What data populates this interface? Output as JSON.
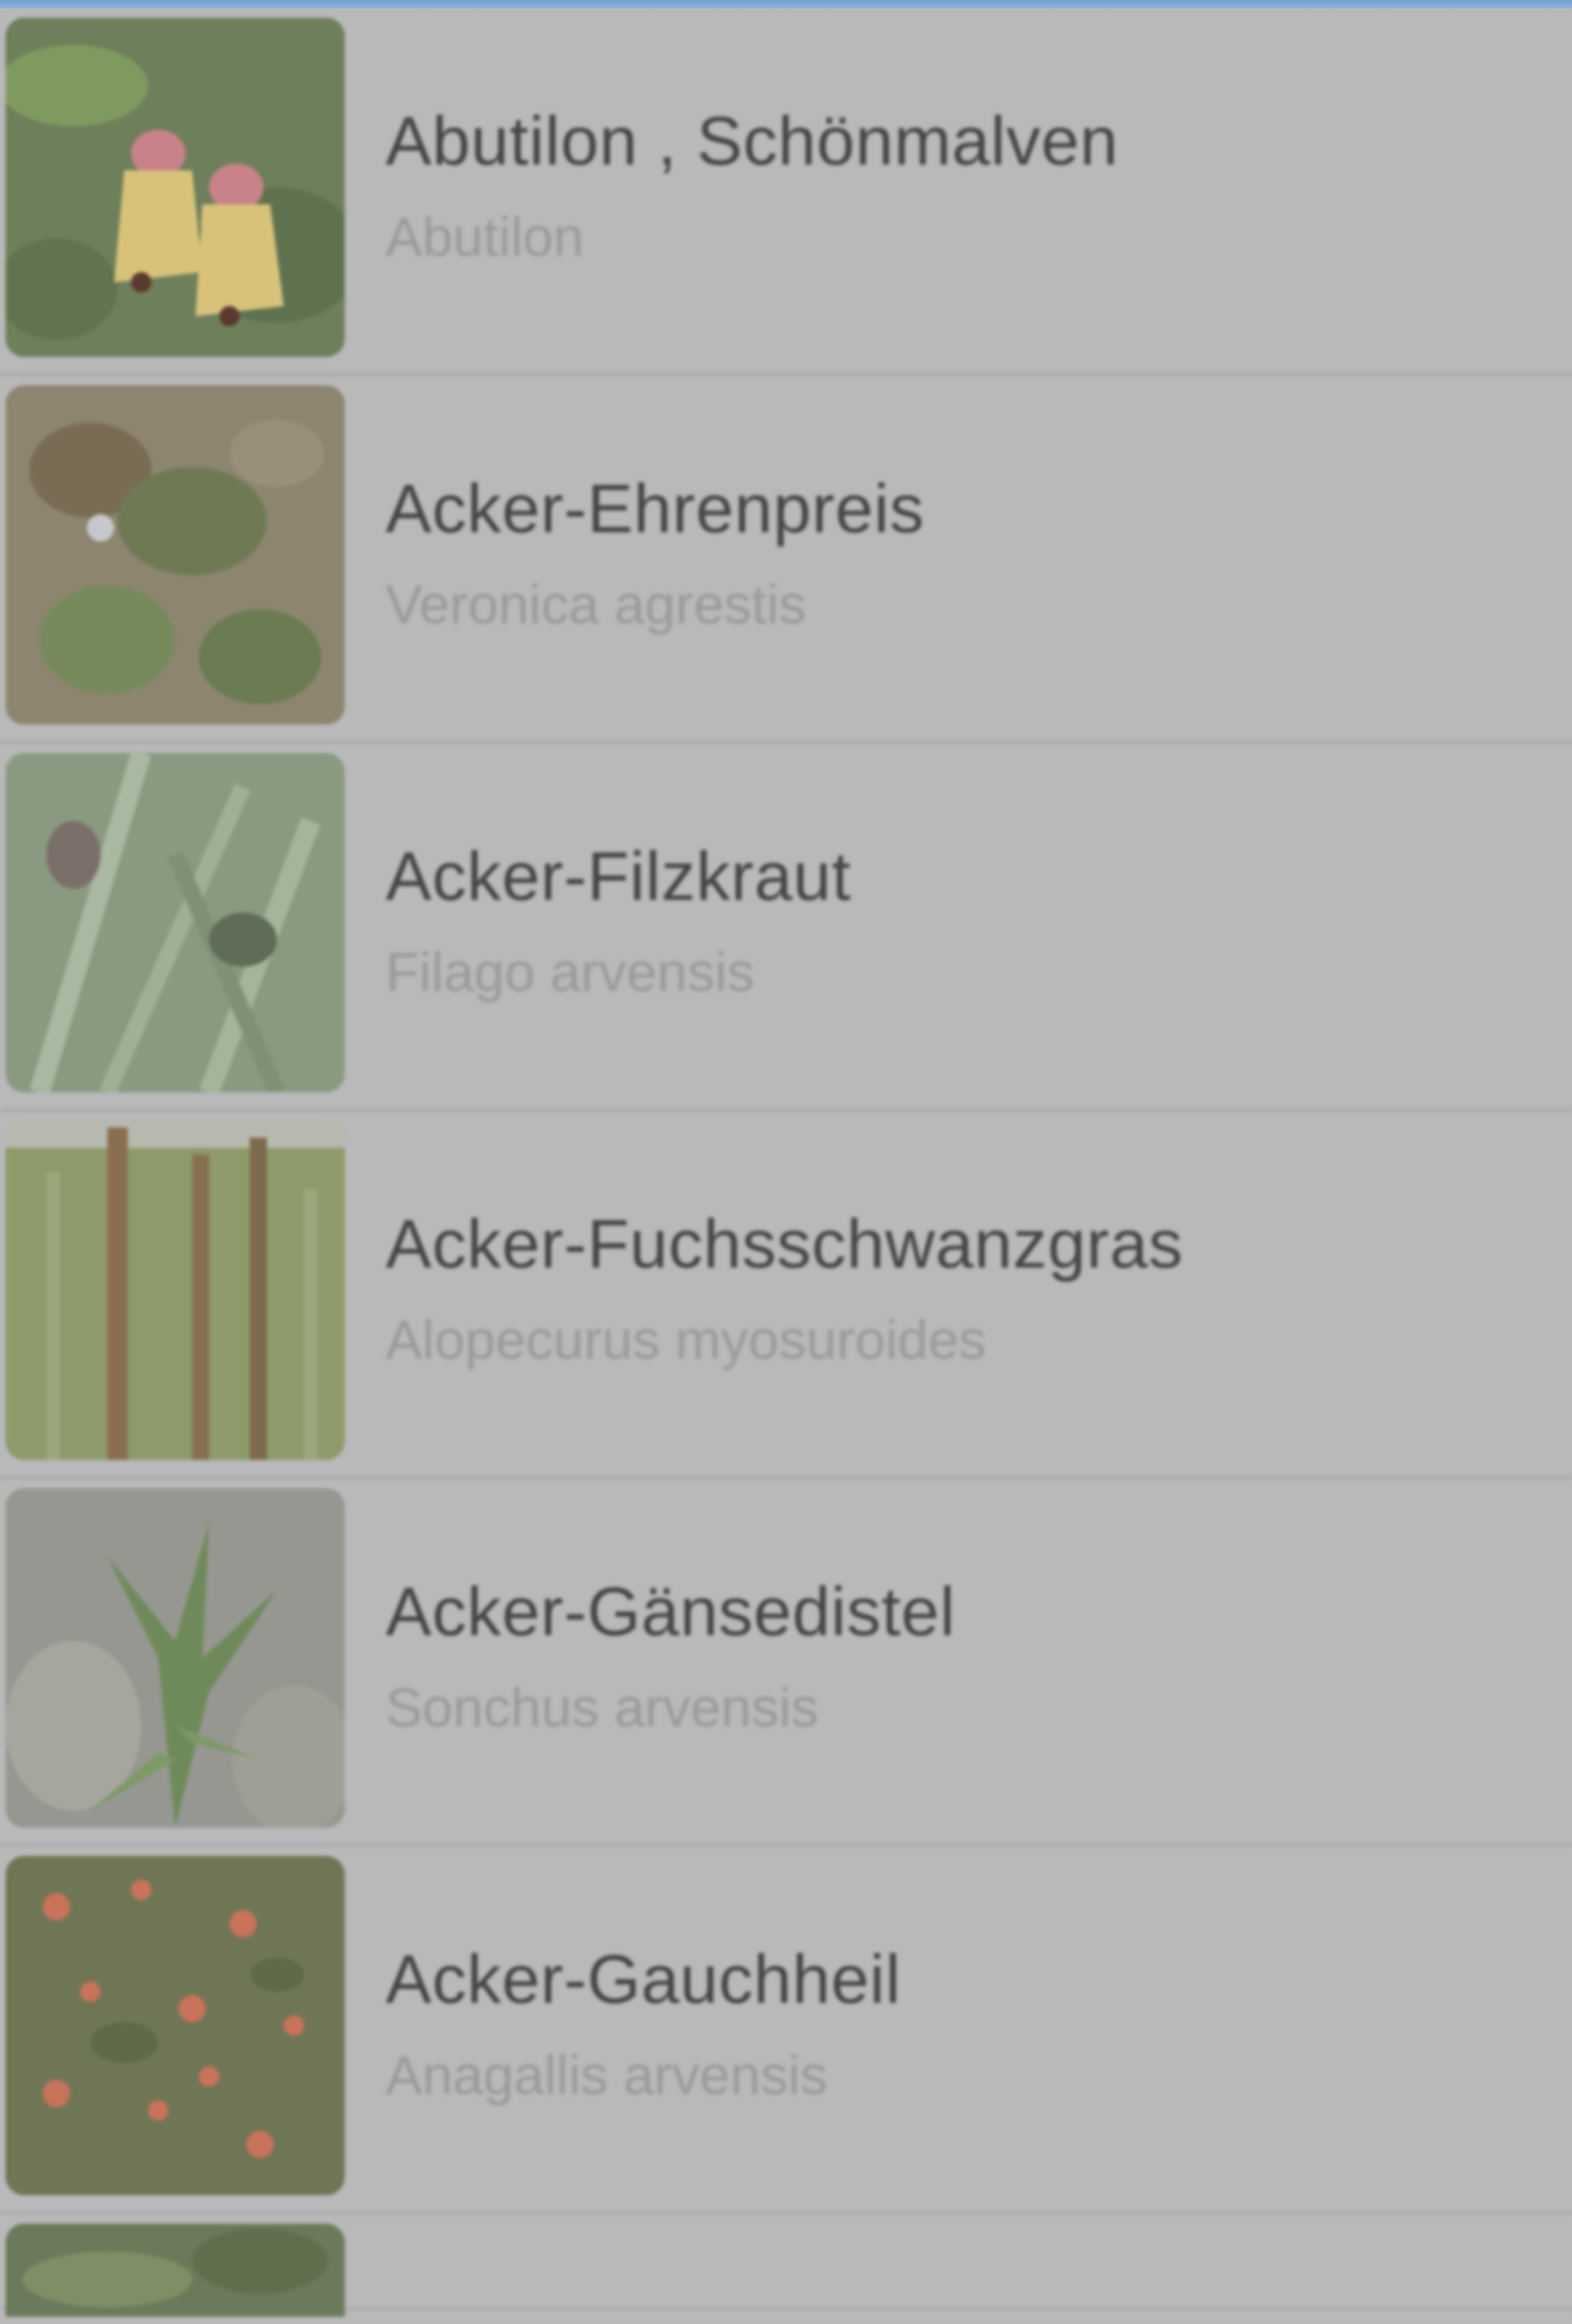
{
  "plants": [
    {
      "common": "Abutilon , Schönmalven",
      "latin": "Abutilon",
      "thumb_icon": "abutilon-flower-photo"
    },
    {
      "common": "Acker-Ehrenpreis",
      "latin": "Veronica agrestis",
      "thumb_icon": "veronica-agrestis-photo"
    },
    {
      "common": "Acker-Filzkraut",
      "latin": "Filago arvensis",
      "thumb_icon": "filago-arvensis-photo"
    },
    {
      "common": "Acker-Fuchsschwanzgras",
      "latin": "Alopecurus myosuroides",
      "thumb_icon": "alopecurus-myosuroides-photo"
    },
    {
      "common": "Acker-Gänsedistel",
      "latin": "Sonchus arvensis",
      "thumb_icon": "sonchus-arvensis-photo"
    },
    {
      "common": "Acker-Gauchheil",
      "latin": "Anagallis arvensis",
      "thumb_icon": "anagallis-arvensis-photo"
    }
  ],
  "colors": {
    "overlay": "#b9b9b9",
    "title_text": "#454545",
    "subtitle_text": "#9a9a9a",
    "separator": "#a9a9a9",
    "top_bar": "#7fa8d3"
  }
}
